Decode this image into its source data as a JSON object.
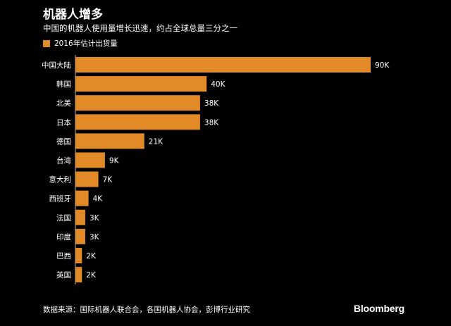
{
  "header": {
    "title": "机器人增多",
    "subtitle": "中国的机器人使用量增长迅速，约占全球总量三分之一"
  },
  "footer": {
    "source": "数据来源：国际机器人联合会，各国机器人协会，彭博行业研究",
    "brand": "Bloomberg"
  },
  "colors": {
    "bar": "#e28a28",
    "background": "#000000",
    "text": "#ffffff",
    "axis": "#bbbbbb"
  },
  "chart_data": {
    "type": "bar",
    "orientation": "horizontal",
    "categories": [
      "中国大陆",
      "韩国",
      "北美",
      "日本",
      "德国",
      "台湾",
      "意大利",
      "西班牙",
      "法国",
      "印度",
      "巴西",
      "英国"
    ],
    "series": [
      {
        "name": "2016年估计出货量",
        "values": [
          90,
          40,
          38,
          38,
          21,
          9,
          7,
          4,
          3,
          3,
          2,
          2
        ],
        "labels": [
          "90K",
          "40K",
          "38K",
          "38K",
          "21K",
          "9K",
          "7K",
          "4K",
          "3K",
          "3K",
          "2K",
          "2K"
        ]
      }
    ],
    "title": "机器人增多",
    "subtitle": "中国的机器人使用量增长迅速，约占全球总量三分之一",
    "xlabel": "",
    "ylabel": "",
    "xlim": [
      0,
      90
    ],
    "grid": false,
    "legend": "top-left"
  }
}
